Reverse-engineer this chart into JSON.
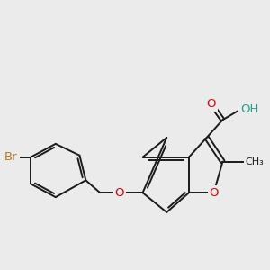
{
  "bg_color": "#ebebeb",
  "bond_color": "#1a1a1a",
  "bond_width": 1.4,
  "dbo": 0.055,
  "atom_colors": {
    "O": "#e00000",
    "Br": "#b87820",
    "OH_color": "#2a9d8f",
    "C": "#1a1a1a"
  },
  "font_size": 9.5,
  "font_size_small": 8.0
}
